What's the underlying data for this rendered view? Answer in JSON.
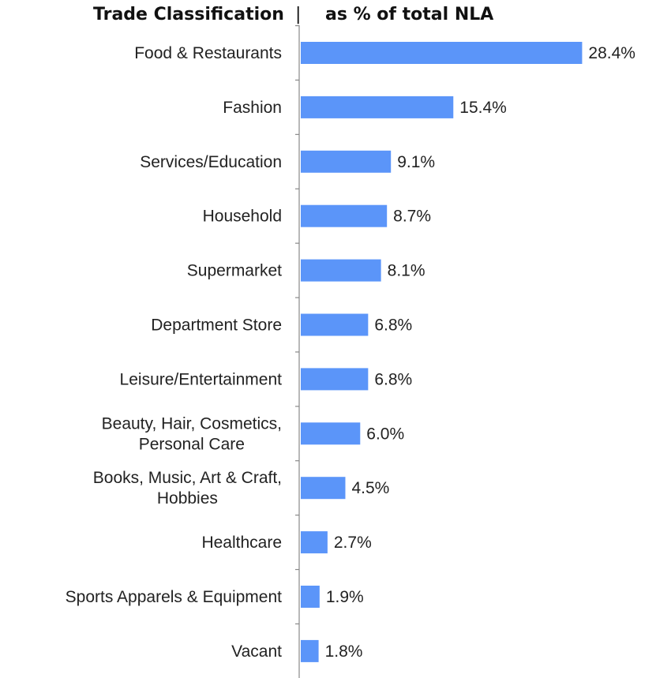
{
  "header": {
    "left_title": "Trade Classification",
    "separator": "|",
    "right_title": "as  % of total NLA"
  },
  "colors": {
    "bar": "#5b95f9",
    "axis": "#888888",
    "text": "#222222"
  },
  "chart_data": {
    "type": "bar",
    "orientation": "horizontal",
    "title": "",
    "xlabel": "",
    "ylabel": "",
    "xlim": [
      0,
      30
    ],
    "grid": false,
    "legend": "none",
    "value_format": "percent_one_decimal",
    "categories": [
      "Food & Restaurants",
      "Fashion",
      "Services/Education",
      "Household",
      "Supermarket",
      "Department Store",
      "Leisure/Entertainment",
      [
        "Beauty, Hair, Cosmetics,",
        "Personal Care"
      ],
      [
        "Books, Music, Art & Craft,",
        "Hobbies"
      ],
      "Healthcare",
      "Sports Apparels & Equipment",
      "Vacant"
    ],
    "values": [
      28.4,
      15.4,
      9.1,
      8.7,
      8.1,
      6.8,
      6.8,
      6.0,
      4.5,
      2.7,
      1.9,
      1.8
    ],
    "data_labels": [
      "28.4%",
      "15.4%",
      "9.1%",
      "8.7%",
      "8.1%",
      "6.8%",
      "6.8%",
      "6.0%",
      "4.5%",
      "2.7%",
      "1.9%",
      "1.8%"
    ]
  }
}
